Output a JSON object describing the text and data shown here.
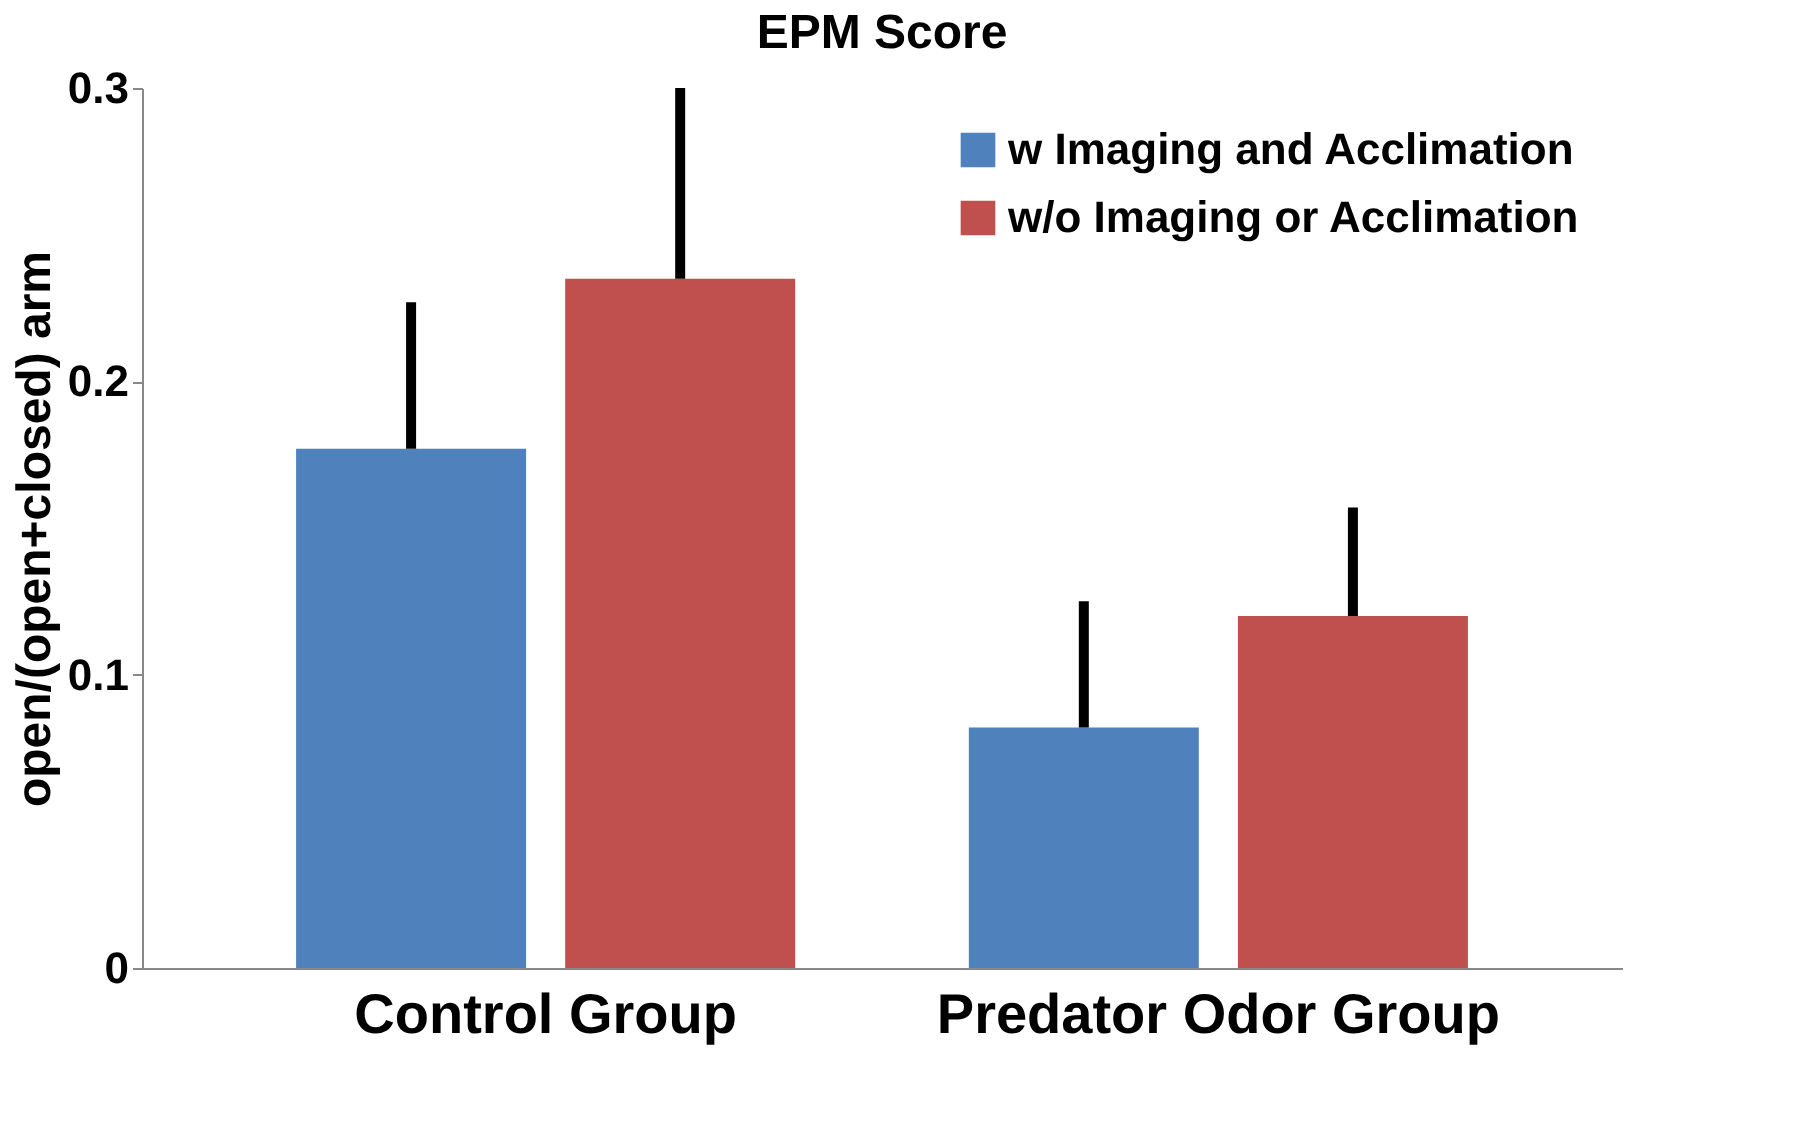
{
  "chart_data": {
    "type": "bar",
    "title": "EPM Score",
    "ylabel": "open/(open+closed) arm",
    "categories": [
      "Control Group",
      "Predator Odor Group"
    ],
    "series": [
      {
        "name": "w Imaging and Acclimation",
        "color": "#4f81bd",
        "values": [
          0.177,
          0.082
        ],
        "errors": [
          [
            0.177,
            0.227
          ],
          [
            0.082,
            0.125
          ]
        ]
      },
      {
        "name": "w/o Imaging or Acclimation",
        "color": "#c0504d",
        "values": [
          0.235,
          0.12
        ],
        "errors": [
          [
            0.235,
            0.3
          ],
          [
            0.12,
            0.157
          ]
        ]
      }
    ],
    "ylim": [
      0,
      0.3
    ],
    "yticks": [
      0,
      0.1,
      0.2,
      0.3
    ],
    "grid": false,
    "legend": "top right"
  }
}
